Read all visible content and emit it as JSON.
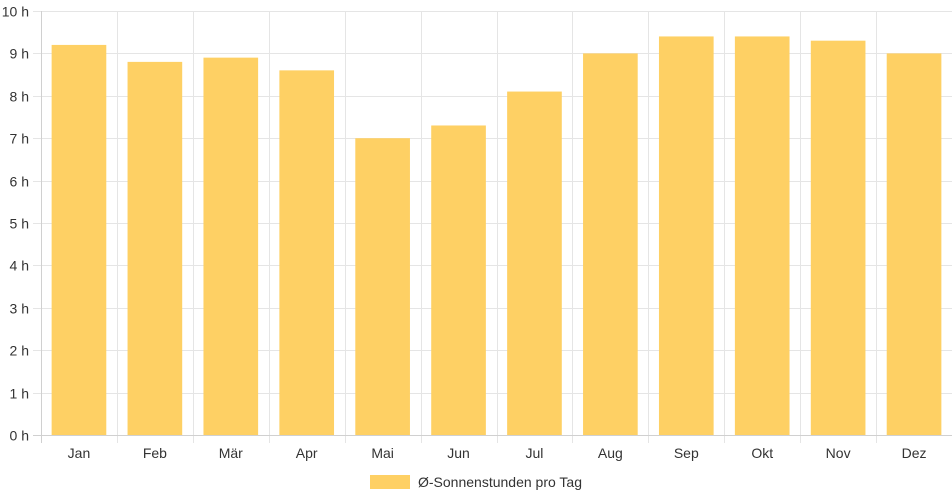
{
  "chart_data": {
    "type": "bar",
    "categories": [
      "Jan",
      "Feb",
      "Mär",
      "Apr",
      "Mai",
      "Jun",
      "Jul",
      "Aug",
      "Sep",
      "Okt",
      "Nov",
      "Dez"
    ],
    "series": [
      {
        "name": "Ø-Sonnenstunden pro Tag",
        "values": [
          9.2,
          8.8,
          8.9,
          8.6,
          7.0,
          7.3,
          8.1,
          9.0,
          9.4,
          9.4,
          9.3,
          9.0
        ]
      }
    ],
    "y_ticks": [
      "0 h",
      "1 h",
      "2 h",
      "3 h",
      "4 h",
      "5 h",
      "6 h",
      "7 h",
      "8 h",
      "9 h",
      "10 h"
    ],
    "ylim": [
      0,
      10
    ],
    "grid": true,
    "legend_position": "bottom",
    "bar_color": "#fed064"
  }
}
